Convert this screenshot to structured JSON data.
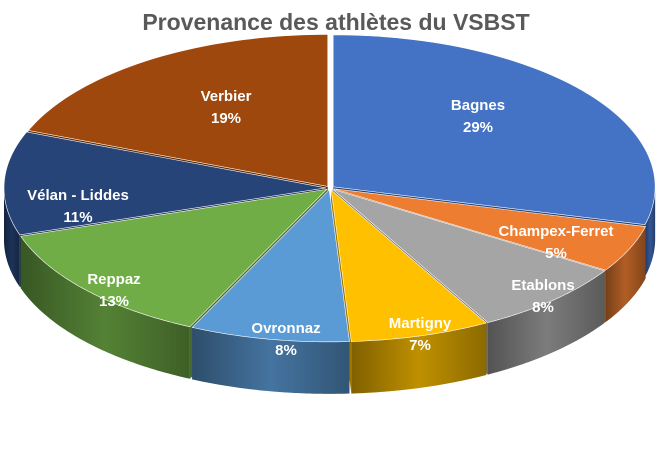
{
  "chart_data": {
    "type": "pie",
    "style": "3d-exploded",
    "title": "Provenance des athlètes du VSBST",
    "legend": "none",
    "slices": [
      {
        "label": "Bagnes",
        "value": 29,
        "display": "29%",
        "color": "#4472C4"
      },
      {
        "label": "Champex-Ferret",
        "value": 5,
        "display": "5%",
        "color": "#ED7D31"
      },
      {
        "label": "Etablons",
        "value": 8,
        "display": "8%",
        "color": "#A5A5A5"
      },
      {
        "label": "Martigny",
        "value": 7,
        "display": "7%",
        "color": "#FFC000"
      },
      {
        "label": "Ovronnaz",
        "value": 8,
        "display": "8%",
        "color": "#5B9BD5"
      },
      {
        "label": "Reppaz",
        "value": 13,
        "display": "13%",
        "color": "#70AD47"
      },
      {
        "label": "Vélan - Liddes",
        "value": 11,
        "display": "11%",
        "color": "#264478"
      },
      {
        "label": "Verbier",
        "value": 19,
        "display": "19%",
        "color": "#9E480E"
      }
    ]
  }
}
